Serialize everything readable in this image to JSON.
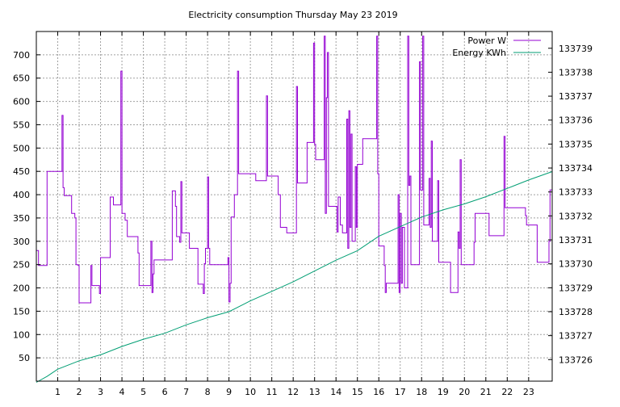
{
  "chart_data": {
    "type": "line",
    "title": "Electricity consumption Thursday May 23 2019",
    "xlabel": "",
    "ylabel": "",
    "xlim": [
      0,
      24.1
    ],
    "ylim": [
      0,
      750
    ],
    "y2lim": [
      133725.1,
      133739.7
    ],
    "x_ticks": [
      1,
      2,
      3,
      4,
      5,
      6,
      7,
      8,
      9,
      10,
      11,
      12,
      13,
      14,
      15,
      16,
      17,
      18,
      19,
      20,
      21,
      22,
      23
    ],
    "y_ticks": [
      50,
      100,
      150,
      200,
      250,
      300,
      350,
      400,
      450,
      500,
      550,
      600,
      650,
      700
    ],
    "y2_ticks": [
      133726,
      133727,
      133728,
      133729,
      133730,
      133731,
      133732,
      133733,
      133734,
      133735,
      133736,
      133737,
      133738,
      133739
    ],
    "grid": true,
    "legend_position": "top-right",
    "series": [
      {
        "name": "Power W",
        "axis": "left",
        "color": "#9400d3",
        "step": true,
        "points": [
          [
            0.0,
            280
          ],
          [
            0.1,
            248
          ],
          [
            0.5,
            450
          ],
          [
            1.15,
            450
          ],
          [
            1.2,
            570
          ],
          [
            1.25,
            415
          ],
          [
            1.3,
            398
          ],
          [
            1.6,
            398
          ],
          [
            1.65,
            360
          ],
          [
            1.8,
            350
          ],
          [
            1.85,
            250
          ],
          [
            1.95,
            248
          ],
          [
            2.0,
            168
          ],
          [
            2.5,
            168
          ],
          [
            2.55,
            248
          ],
          [
            2.6,
            205
          ],
          [
            2.9,
            205
          ],
          [
            2.95,
            188
          ],
          [
            3.0,
            265
          ],
          [
            3.4,
            265
          ],
          [
            3.45,
            395
          ],
          [
            3.6,
            378
          ],
          [
            3.9,
            378
          ],
          [
            3.95,
            665
          ],
          [
            4.0,
            360
          ],
          [
            4.15,
            345
          ],
          [
            4.25,
            310
          ],
          [
            4.7,
            310
          ],
          [
            4.75,
            275
          ],
          [
            4.8,
            205
          ],
          [
            5.3,
            205
          ],
          [
            5.35,
            300
          ],
          [
            5.4,
            190
          ],
          [
            5.45,
            230
          ],
          [
            5.5,
            260
          ],
          [
            6.3,
            260
          ],
          [
            6.35,
            408
          ],
          [
            6.5,
            375
          ],
          [
            6.55,
            310
          ],
          [
            6.7,
            298
          ],
          [
            6.75,
            428
          ],
          [
            6.8,
            318
          ],
          [
            7.1,
            318
          ],
          [
            7.15,
            285
          ],
          [
            7.5,
            285
          ],
          [
            7.55,
            208
          ],
          [
            7.75,
            208
          ],
          [
            7.8,
            188
          ],
          [
            7.85,
            252
          ],
          [
            7.9,
            285
          ],
          [
            8.0,
            438
          ],
          [
            8.05,
            285
          ],
          [
            8.1,
            250
          ],
          [
            8.9,
            250
          ],
          [
            8.95,
            265
          ],
          [
            9.0,
            170
          ],
          [
            9.05,
            210
          ],
          [
            9.1,
            352
          ],
          [
            9.25,
            400
          ],
          [
            9.4,
            665
          ],
          [
            9.45,
            445
          ],
          [
            10.2,
            445
          ],
          [
            10.25,
            430
          ],
          [
            10.7,
            430
          ],
          [
            10.75,
            612
          ],
          [
            10.8,
            440
          ],
          [
            11.2,
            440
          ],
          [
            11.3,
            400
          ],
          [
            11.4,
            330
          ],
          [
            11.65,
            330
          ],
          [
            11.7,
            318
          ],
          [
            12.1,
            318
          ],
          [
            12.15,
            632
          ],
          [
            12.2,
            425
          ],
          [
            12.6,
            425
          ],
          [
            12.65,
            512
          ],
          [
            12.9,
            512
          ],
          [
            12.95,
            725
          ],
          [
            13.0,
            508
          ],
          [
            13.05,
            475
          ],
          [
            13.4,
            475
          ],
          [
            13.45,
            740
          ],
          [
            13.5,
            360
          ],
          [
            13.55,
            608
          ],
          [
            13.6,
            705
          ],
          [
            13.65,
            375
          ],
          [
            14.0,
            375
          ],
          [
            14.05,
            320
          ],
          [
            14.1,
            395
          ],
          [
            14.2,
            335
          ],
          [
            14.3,
            318
          ],
          [
            14.5,
            562
          ],
          [
            14.55,
            285
          ],
          [
            14.6,
            580
          ],
          [
            14.65,
            330
          ],
          [
            14.7,
            530
          ],
          [
            14.75,
            300
          ],
          [
            14.9,
            460
          ],
          [
            14.95,
            330
          ],
          [
            15.0,
            465
          ],
          [
            15.2,
            465
          ],
          [
            15.25,
            520
          ],
          [
            15.85,
            520
          ],
          [
            15.9,
            740
          ],
          [
            15.95,
            445
          ],
          [
            16.0,
            290
          ],
          [
            16.2,
            290
          ],
          [
            16.25,
            248
          ],
          [
            16.3,
            190
          ],
          [
            16.35,
            210
          ],
          [
            16.85,
            210
          ],
          [
            16.9,
            400
          ],
          [
            16.95,
            190
          ],
          [
            17.0,
            360
          ],
          [
            17.05,
            210
          ],
          [
            17.1,
            330
          ],
          [
            17.2,
            200
          ],
          [
            17.35,
            740
          ],
          [
            17.4,
            420
          ],
          [
            17.45,
            440
          ],
          [
            17.5,
            250
          ],
          [
            17.8,
            250
          ],
          [
            17.9,
            685
          ],
          [
            17.95,
            410
          ],
          [
            18.05,
            740
          ],
          [
            18.1,
            335
          ],
          [
            18.3,
            335
          ],
          [
            18.35,
            435
          ],
          [
            18.4,
            330
          ],
          [
            18.45,
            515
          ],
          [
            18.5,
            300
          ],
          [
            18.7,
            300
          ],
          [
            18.75,
            430
          ],
          [
            18.8,
            255
          ],
          [
            19.3,
            255
          ],
          [
            19.35,
            190
          ],
          [
            19.65,
            190
          ],
          [
            19.7,
            320
          ],
          [
            19.75,
            285
          ],
          [
            19.8,
            475
          ],
          [
            19.85,
            250
          ],
          [
            20.4,
            250
          ],
          [
            20.45,
            298
          ],
          [
            20.5,
            360
          ],
          [
            21.1,
            360
          ],
          [
            21.15,
            312
          ],
          [
            21.8,
            312
          ],
          [
            21.85,
            525
          ],
          [
            21.9,
            372
          ],
          [
            22.8,
            372
          ],
          [
            22.85,
            355
          ],
          [
            22.9,
            335
          ],
          [
            23.35,
            335
          ],
          [
            23.4,
            255
          ],
          [
            23.9,
            255
          ],
          [
            23.95,
            300
          ],
          [
            24.0,
            410
          ],
          [
            24.1,
            410
          ]
        ]
      },
      {
        "name": "Energy KWh",
        "axis": "right",
        "color": "#009e73",
        "step": false,
        "points": [
          [
            0.0,
            133725.05
          ],
          [
            0.5,
            133725.3
          ],
          [
            1.0,
            133725.6
          ],
          [
            2.0,
            133725.95
          ],
          [
            3.0,
            133726.2
          ],
          [
            4.0,
            133726.55
          ],
          [
            5.0,
            133726.85
          ],
          [
            6.0,
            133727.1
          ],
          [
            7.0,
            133727.45
          ],
          [
            8.0,
            133727.75
          ],
          [
            9.0,
            133728.0
          ],
          [
            10.0,
            133728.45
          ],
          [
            11.0,
            133728.85
          ],
          [
            12.0,
            133729.25
          ],
          [
            13.0,
            133729.7
          ],
          [
            14.0,
            133730.15
          ],
          [
            15.0,
            133730.55
          ],
          [
            16.0,
            133731.15
          ],
          [
            17.0,
            133731.55
          ],
          [
            18.0,
            133731.95
          ],
          [
            19.0,
            133732.25
          ],
          [
            20.0,
            133732.5
          ],
          [
            21.0,
            133732.8
          ],
          [
            22.0,
            133733.15
          ],
          [
            23.0,
            133733.5
          ],
          [
            24.1,
            133733.85
          ]
        ]
      }
    ]
  }
}
